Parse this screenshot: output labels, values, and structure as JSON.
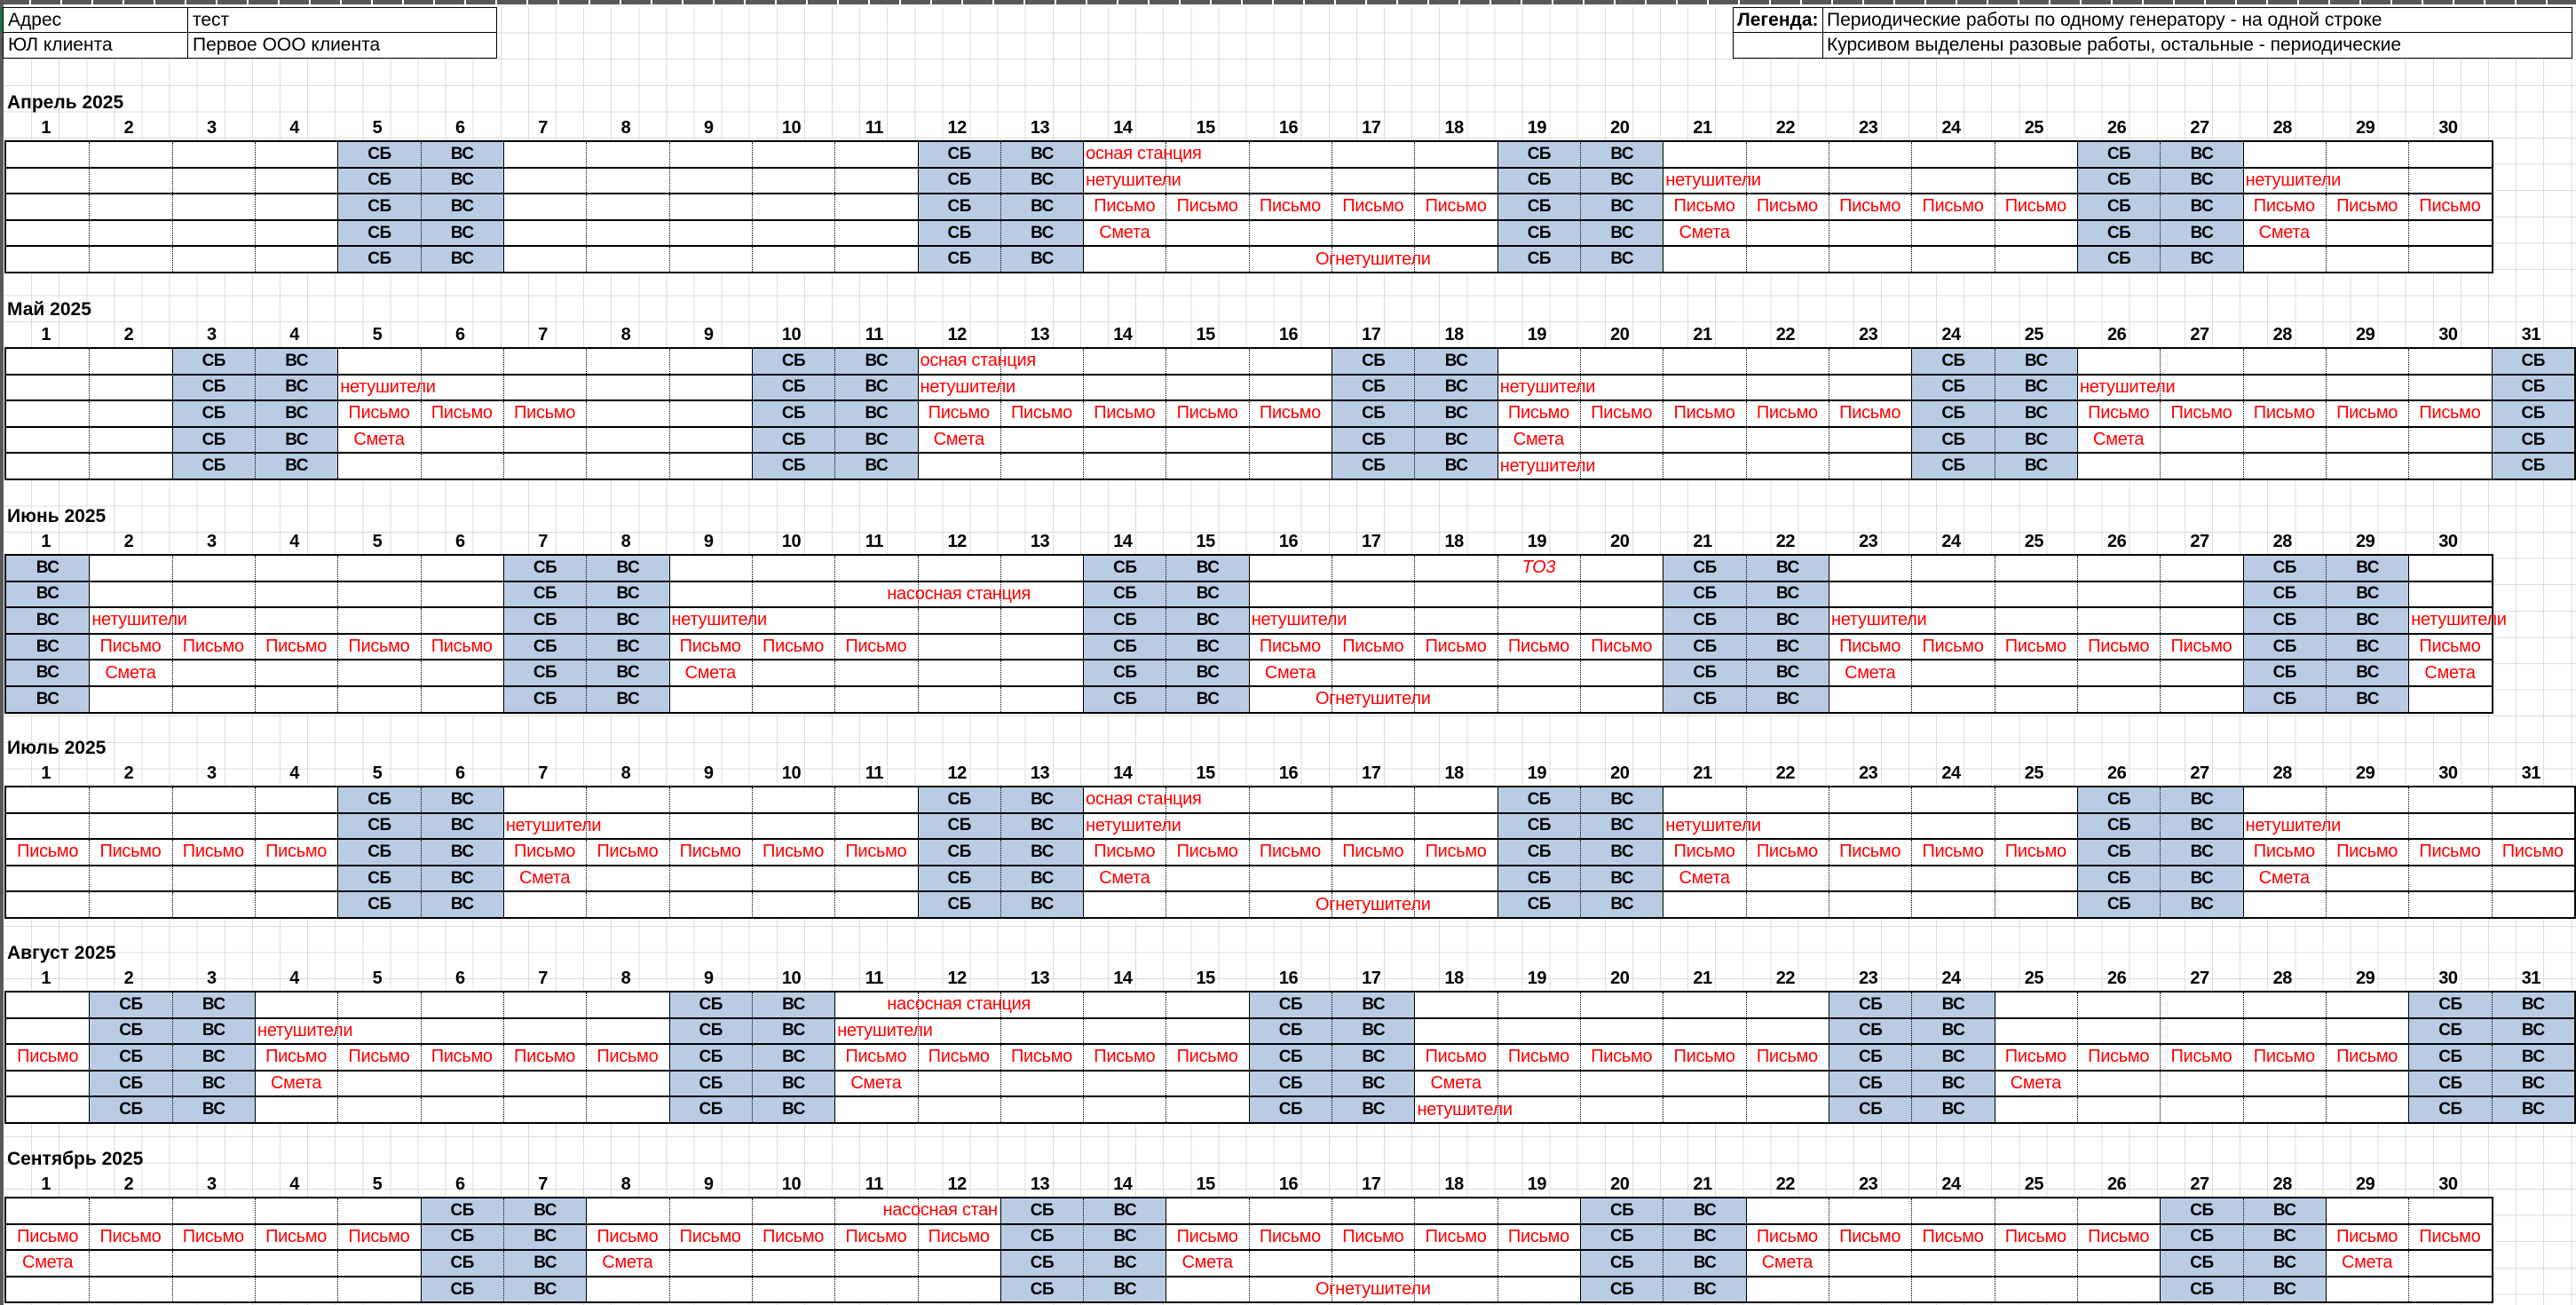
{
  "header": {
    "address_label": "Адрес",
    "address_value": "тест",
    "client_label": "ЮЛ клиента",
    "client_value": "Первое ООО клиента"
  },
  "legend": {
    "label": "Легенда:",
    "line1": "Периодические работы по одному генератору - на одной строке",
    "line2": "Курсивом выделены разовые работы, остальные - периодические"
  },
  "labels": {
    "saturday": "СБ",
    "sunday": "ВС"
  },
  "colors": {
    "weekend_fill": "#B9CCE4",
    "work_text": "#FF0000",
    "grid_line": "#000000"
  },
  "months": [
    {
      "name": "Апрель 2025",
      "days": 30,
      "saturdays": [
        5,
        12,
        19,
        26
      ],
      "sundays": [
        6,
        13,
        20,
        27
      ],
      "rows": [
        {
          "cells": [
            {
              "days": [
                14
              ],
              "span": 2,
              "align": "left",
              "text": "осная станция"
            }
          ]
        },
        {
          "cells": [
            {
              "days": [
                14,
                21,
                28
              ],
              "span": 2,
              "align": "left",
              "text": "нетушители"
            }
          ]
        },
        {
          "cells": [
            {
              "days": [
                14,
                15,
                16,
                17,
                18,
                21,
                22,
                23,
                24,
                25,
                28,
                29,
                30
              ],
              "text": "Письмо"
            }
          ]
        },
        {
          "cells": [
            {
              "days": [
                14,
                21,
                28
              ],
              "text": "Смета"
            }
          ]
        },
        {
          "cells": [
            {
              "days": [
                16
              ],
              "span": 3,
              "align": "center",
              "text": "Огнетушители"
            }
          ]
        }
      ]
    },
    {
      "name": "Май 2025",
      "days": 31,
      "saturdays": [
        3,
        10,
        17,
        24,
        31
      ],
      "sundays": [
        4,
        11,
        18,
        25
      ],
      "rows": [
        {
          "cells": [
            {
              "days": [
                12
              ],
              "span": 2,
              "align": "left",
              "text": "осная станция"
            }
          ]
        },
        {
          "cells": [
            {
              "days": [
                5,
                12,
                19,
                26
              ],
              "span": 2,
              "align": "left",
              "text": "нетушители"
            }
          ]
        },
        {
          "cells": [
            {
              "days": [
                5,
                6,
                7,
                12,
                13,
                14,
                15,
                16,
                19,
                20,
                21,
                22,
                23,
                26,
                27,
                28,
                29,
                30
              ],
              "text": "Письмо"
            }
          ]
        },
        {
          "cells": [
            {
              "days": [
                5,
                12,
                19,
                26
              ],
              "text": "Смета"
            }
          ]
        },
        {
          "cells": [
            {
              "days": [
                19
              ],
              "span": 2,
              "align": "left",
              "text": "нетушители"
            }
          ]
        }
      ]
    },
    {
      "name": "Июнь 2025",
      "days": 30,
      "saturdays": [
        7,
        14,
        21,
        28
      ],
      "sundays": [
        1,
        8,
        15,
        22,
        29
      ],
      "rows": [
        {
          "cells": [
            {
              "days": [
                19
              ],
              "italic": true,
              "align": "center",
              "text": "ТО3"
            }
          ]
        },
        {
          "cells": [
            {
              "days": [
                12
              ],
              "align": "center",
              "text": "насосная станция"
            }
          ]
        },
        {
          "cells": [
            {
              "days": [
                2,
                9,
                16,
                23,
                30
              ],
              "span": 2,
              "align": "left",
              "text": "нетушители"
            }
          ]
        },
        {
          "cells": [
            {
              "days": [
                2,
                3,
                4,
                5,
                6,
                9,
                10,
                11,
                16,
                17,
                18,
                19,
                20,
                23,
                24,
                25,
                26,
                27,
                30
              ],
              "text": "Письмо"
            }
          ]
        },
        {
          "cells": [
            {
              "days": [
                2,
                9,
                16,
                23,
                30
              ],
              "text": "Смета"
            }
          ]
        },
        {
          "cells": [
            {
              "days": [
                16
              ],
              "span": 3,
              "align": "center",
              "text": "Огнетушители"
            }
          ]
        }
      ]
    },
    {
      "name": "Июль 2025",
      "days": 31,
      "saturdays": [
        5,
        12,
        19,
        26
      ],
      "sundays": [
        6,
        13,
        20,
        27
      ],
      "rows": [
        {
          "cells": [
            {
              "days": [
                14
              ],
              "span": 2,
              "align": "left",
              "text": "осная станция"
            }
          ]
        },
        {
          "cells": [
            {
              "days": [
                7,
                14,
                21,
                28
              ],
              "span": 2,
              "align": "left",
              "text": "нетушители"
            }
          ]
        },
        {
          "cells": [
            {
              "days": [
                1,
                2,
                3,
                4,
                7,
                8,
                9,
                10,
                11,
                14,
                15,
                16,
                17,
                18,
                21,
                22,
                23,
                24,
                25,
                28,
                29,
                30,
                31
              ],
              "text": "Письмо"
            }
          ]
        },
        {
          "cells": [
            {
              "days": [
                7,
                14,
                21,
                28
              ],
              "text": "Смета"
            }
          ]
        },
        {
          "cells": [
            {
              "days": [
                16
              ],
              "span": 3,
              "align": "center",
              "text": "Огнетушители"
            }
          ]
        }
      ]
    },
    {
      "name": "Август 2025",
      "days": 31,
      "saturdays": [
        2,
        9,
        16,
        23,
        30
      ],
      "sundays": [
        3,
        10,
        17,
        24,
        31
      ],
      "rows": [
        {
          "cells": [
            {
              "days": [
                12
              ],
              "align": "center",
              "text": "насосная станция"
            }
          ]
        },
        {
          "cells": [
            {
              "days": [
                4,
                11
              ],
              "span": 2,
              "align": "left",
              "text": "нетушители"
            }
          ]
        },
        {
          "cells": [
            {
              "days": [
                1,
                4,
                5,
                6,
                7,
                8,
                11,
                12,
                13,
                14,
                15,
                18,
                19,
                20,
                21,
                22,
                25,
                26,
                27,
                28,
                29
              ],
              "text": "Письмо"
            }
          ]
        },
        {
          "cells": [
            {
              "days": [
                4,
                11,
                18,
                25
              ],
              "text": "Смета"
            }
          ]
        },
        {
          "cells": [
            {
              "days": [
                18
              ],
              "span": 2,
              "align": "left",
              "text": "нетушители"
            }
          ]
        }
      ]
    },
    {
      "name": "Сентябрь 2025",
      "days": 30,
      "saturdays": [
        6,
        13,
        20,
        27
      ],
      "sundays": [
        7,
        14,
        21,
        28
      ],
      "rows": [
        {
          "cells": [
            {
              "days": [
                11
              ],
              "span": 2,
              "align": "right",
              "text": "насосная стан"
            }
          ]
        },
        {
          "cells": [
            {
              "days": [
                1,
                2,
                3,
                4,
                5,
                8,
                9,
                10,
                11,
                12,
                15,
                16,
                17,
                18,
                19,
                22,
                23,
                24,
                25,
                26,
                29,
                30
              ],
              "text": "Письмо"
            }
          ]
        },
        {
          "cells": [
            {
              "days": [
                1,
                8,
                15,
                22,
                29
              ],
              "text": "Смета"
            }
          ]
        },
        {
          "cells": [
            {
              "days": [
                16
              ],
              "span": 3,
              "align": "center",
              "text": "Огнетушители"
            }
          ]
        }
      ]
    }
  ]
}
